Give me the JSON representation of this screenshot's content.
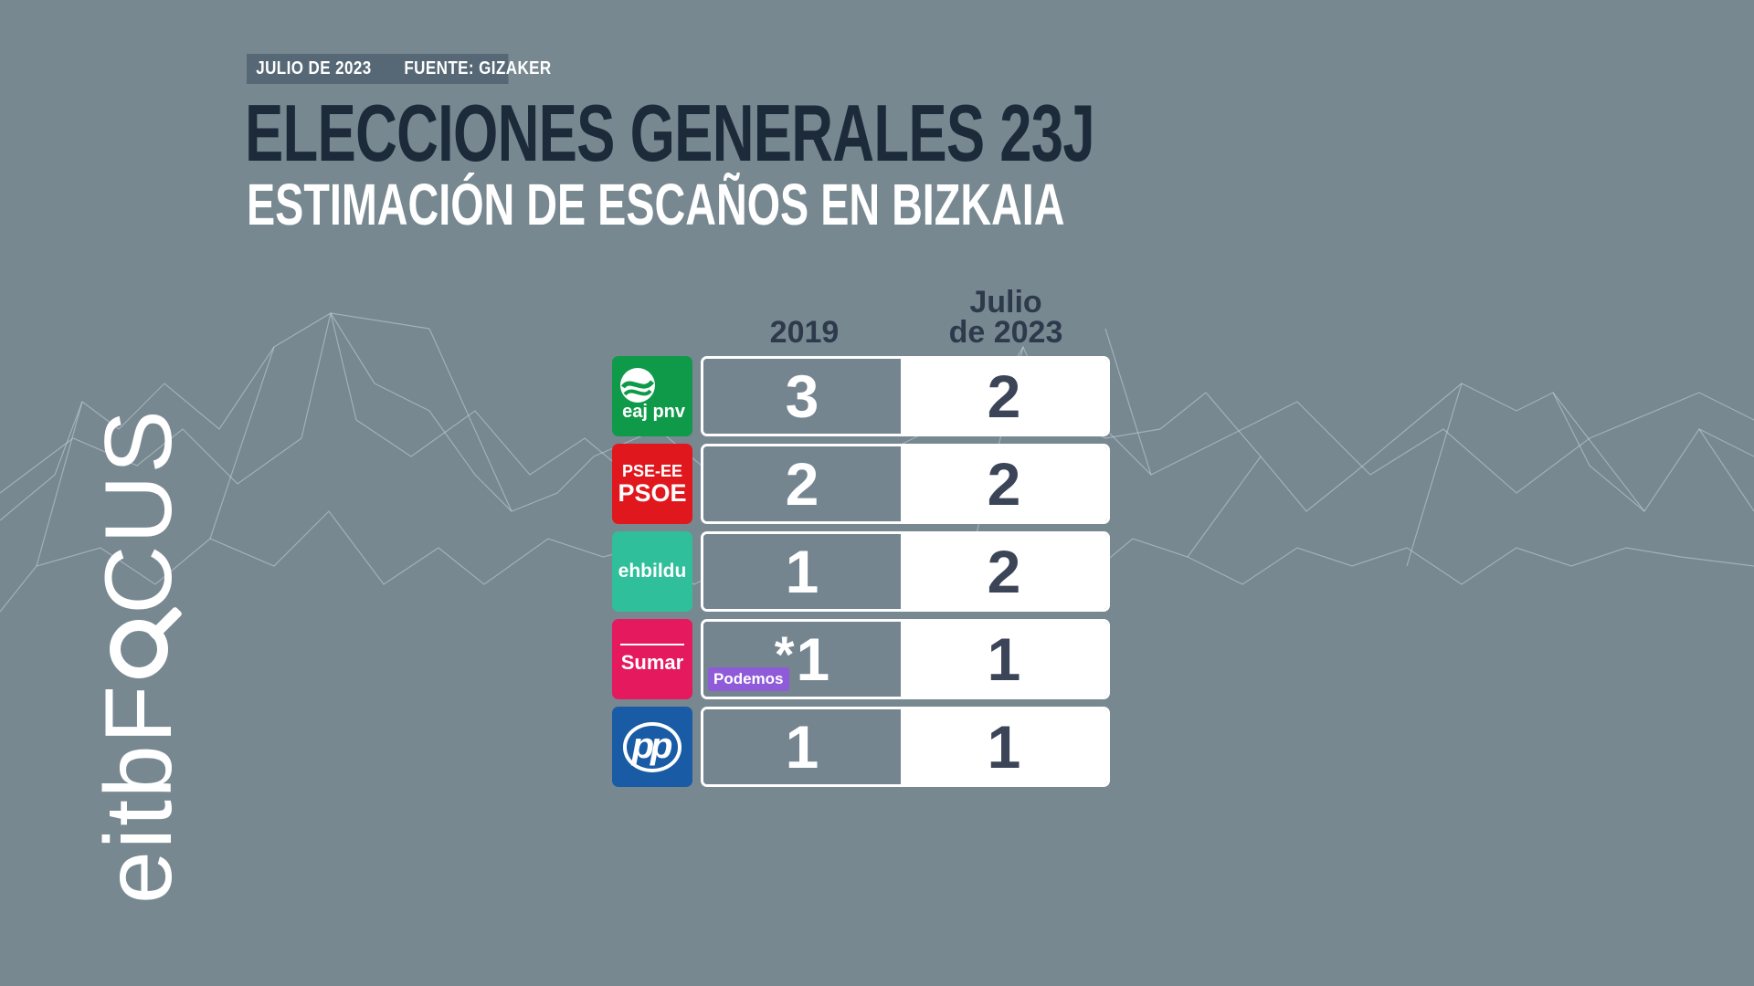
{
  "header": {
    "date": "JULIO DE 2023",
    "source": "FUENTE: GIZAKER",
    "title": "ELECCIONES GENERALES 23J",
    "subtitle": "ESTIMACIÓN DE ESCAÑOS EN BIZKAIA"
  },
  "brand": {
    "prefix": "eitbF",
    "suffix": "CUS"
  },
  "columns": {
    "col_2019": "2019",
    "col_2023_line1": "Julio",
    "col_2023_line2": "de 2023"
  },
  "parties": [
    {
      "logo_text": "eaj pnv",
      "seats_2019": "3",
      "seats_2023": "2",
      "color": "#0f9a4a"
    },
    {
      "logo_line1": "PSE-EE",
      "logo_line2": "PSOE",
      "seats_2019": "2",
      "seats_2023": "2",
      "color": "#e1171e"
    },
    {
      "logo_text": "ehbildu",
      "seats_2019": "1",
      "seats_2023": "2",
      "color": "#2fbf9a"
    },
    {
      "logo_text": "Sumar",
      "asterisk": "*",
      "seats_2019": "1",
      "badge": "Podemos",
      "seats_2023": "1",
      "color": "#e5195d"
    },
    {
      "logo_text": "pp",
      "seats_2019": "1",
      "seats_2023": "1",
      "color": "#1a5ba6"
    }
  ]
}
